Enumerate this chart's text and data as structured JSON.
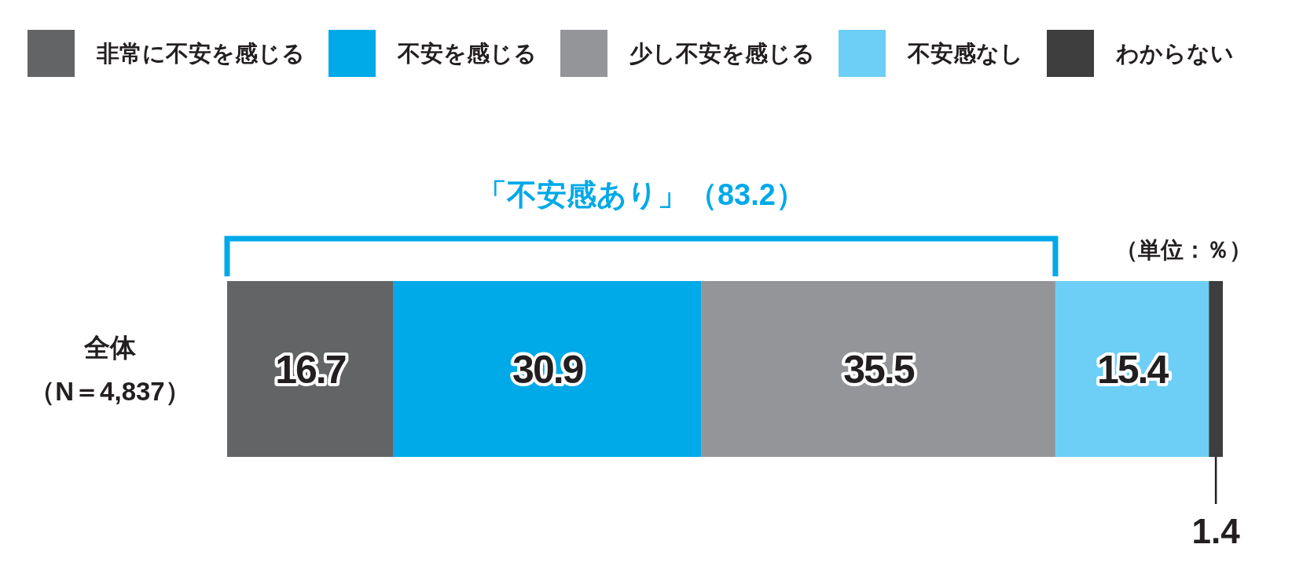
{
  "chart_data": {
    "type": "bar",
    "orientation": "horizontal",
    "stacked": true,
    "data_labels": true,
    "legend": "top",
    "tick_labels": "y",
    "categories": [
      "全体（N＝4,837）"
    ],
    "series": [
      {
        "name": "非常に不安を感じる",
        "color": "#636466",
        "values": [
          16.7
        ]
      },
      {
        "name": "不安を感じる",
        "color": "#00a9e8",
        "values": [
          30.9
        ]
      },
      {
        "name": "少し不安を感じる",
        "color": "#939598",
        "values": [
          35.5
        ]
      },
      {
        "name": "不安感なし",
        "color": "#6dcff6",
        "values": [
          15.4
        ]
      },
      {
        "name": "わからない",
        "color": "#3e3e3e",
        "values": [
          1.4
        ]
      }
    ],
    "annotations": [
      "「不安感あり」（83.2）",
      "（単位：％）"
    ]
  }
}
